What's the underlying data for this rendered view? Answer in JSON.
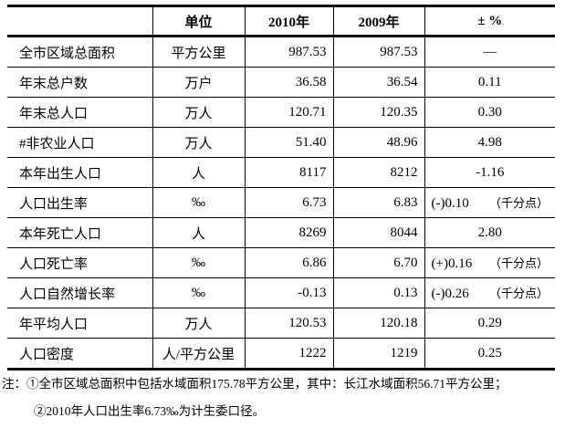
{
  "table": {
    "columns": [
      "",
      "单位",
      "2010年",
      "2009年",
      "± %"
    ],
    "rows": [
      {
        "label": "全市区域总面积",
        "unit": "平方公里",
        "v2010": "987.53",
        "v2009": "987.53",
        "change": "—",
        "change_note": ""
      },
      {
        "label": "年末总户数",
        "unit": "万户",
        "v2010": "36.58",
        "v2009": "36.54",
        "change": "0.11",
        "change_note": ""
      },
      {
        "label": "年末总人口",
        "unit": "万人",
        "v2010": "120.71",
        "v2009": "120.35",
        "change": "0.30",
        "change_note": ""
      },
      {
        "label": "#非农业人口",
        "unit": "万人",
        "v2010": "51.40",
        "v2009": "48.96",
        "change": "4.98",
        "change_note": ""
      },
      {
        "label": "本年出生人口",
        "unit": "人",
        "v2010": "8117",
        "v2009": "8212",
        "change": "-1.16",
        "change_note": ""
      },
      {
        "label": "人口出生率",
        "unit": "‰",
        "v2010": "6.73",
        "v2009": "6.83",
        "change": "(-)0.10",
        "change_note": "（千分点）"
      },
      {
        "label": "本年死亡人口",
        "unit": "人",
        "v2010": "8269",
        "v2009": "8044",
        "change": "2.80",
        "change_note": ""
      },
      {
        "label": "人口死亡率",
        "unit": "‰",
        "v2010": "6.86",
        "v2009": "6.70",
        "change": "(+)0.16",
        "change_note": "（千分点）"
      },
      {
        "label": "人口自然增长率",
        "unit": "‰",
        "v2010": "-0.13",
        "v2009": "0.13",
        "change": "(-)0.26",
        "change_note": "（千分点）"
      },
      {
        "label": "年平均人口",
        "unit": "万人",
        "v2010": "120.53",
        "v2009": "120.18",
        "change": "0.29",
        "change_note": ""
      },
      {
        "label": "人口密度",
        "unit": "人/平方公里",
        "v2010": "1222",
        "v2009": "1219",
        "change": "0.25",
        "change_note": ""
      }
    ]
  },
  "notes": [
    "注：①全市区域总面积中包括水域面积175.78平方公里，其中：长江水域面积56.71平方公里；",
    "②2010年人口出生率6.73‰为计生委口径。"
  ]
}
